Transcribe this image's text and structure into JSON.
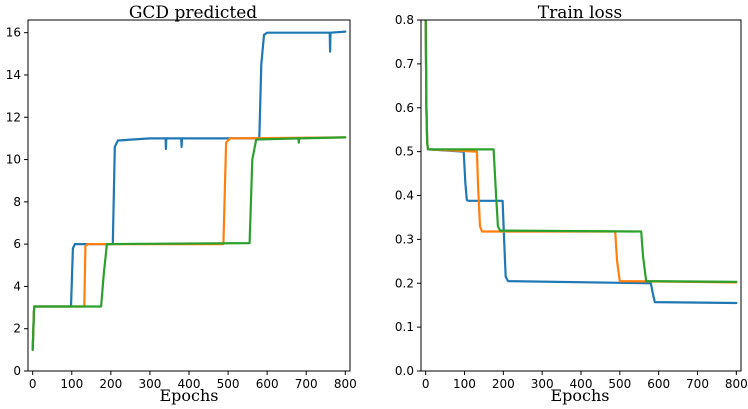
{
  "chart_data": [
    {
      "type": "line",
      "title": "GCD predicted",
      "xlabel": "Epochs",
      "ylabel": "",
      "xlim": [
        -12,
        812
      ],
      "ylim": [
        0,
        16.6
      ],
      "xticks": [
        0,
        100,
        200,
        300,
        400,
        500,
        600,
        700,
        800
      ],
      "yticks": [
        0,
        2,
        4,
        6,
        8,
        10,
        12,
        14,
        16
      ],
      "ytick_labels": [
        "0",
        "2",
        "4",
        "6",
        "8",
        "10",
        "12",
        "14",
        "16"
      ],
      "series": [
        {
          "name": "blue",
          "color": "#1f77b4",
          "x": [
            0,
            3,
            4,
            8,
            98,
            103,
            108,
            205,
            210,
            218,
            300,
            340,
            341,
            342,
            380,
            381,
            382,
            580,
            585,
            592,
            600,
            760,
            761,
            762,
            800
          ],
          "y": [
            1.0,
            2.8,
            3.05,
            3.05,
            3.05,
            5.8,
            6.0,
            6.0,
            10.6,
            10.9,
            11.0,
            11.0,
            10.5,
            11.0,
            11.0,
            10.6,
            11.0,
            11.0,
            14.5,
            15.9,
            16.0,
            16.0,
            15.1,
            16.0,
            16.05
          ]
        },
        {
          "name": "orange",
          "color": "#ff7f0e",
          "x": [
            0,
            3,
            4,
            8,
            132,
            135,
            140,
            488,
            495,
            505,
            800
          ],
          "y": [
            1.0,
            2.8,
            3.05,
            3.05,
            3.05,
            5.9,
            6.0,
            6.0,
            10.8,
            11.0,
            11.05
          ]
        },
        {
          "name": "green",
          "color": "#2ca02c",
          "x": [
            0,
            3,
            4,
            8,
            175,
            182,
            190,
            555,
            562,
            572,
            680,
            681,
            682,
            800
          ],
          "y": [
            1.0,
            2.8,
            3.05,
            3.05,
            3.05,
            4.6,
            6.0,
            6.05,
            10.0,
            10.95,
            11.0,
            10.8,
            11.0,
            11.05
          ]
        }
      ]
    },
    {
      "type": "line",
      "title": "Train loss",
      "xlabel": "Epochs",
      "ylabel": "",
      "xlim": [
        -12,
        812
      ],
      "ylim": [
        0,
        0.8
      ],
      "xticks": [
        0,
        100,
        200,
        300,
        400,
        500,
        600,
        700,
        800
      ],
      "yticks": [
        0,
        0.1,
        0.2,
        0.3,
        0.4,
        0.5,
        0.6,
        0.7,
        0.8
      ],
      "ytick_labels": [
        "0.0",
        "0.1",
        "0.2",
        "0.3",
        "0.4",
        "0.5",
        "0.6",
        "0.7",
        "0.8"
      ],
      "series": [
        {
          "name": "blue",
          "color": "#1f77b4",
          "x": [
            0,
            2,
            4,
            6,
            8,
            98,
            102,
            106,
            110,
            198,
            202,
            206,
            212,
            580,
            584,
            590,
            800
          ],
          "y": [
            0.8,
            0.6,
            0.52,
            0.505,
            0.505,
            0.5,
            0.43,
            0.39,
            0.388,
            0.388,
            0.3,
            0.215,
            0.205,
            0.2,
            0.18,
            0.157,
            0.155
          ]
        },
        {
          "name": "orange",
          "color": "#ff7f0e",
          "x": [
            0,
            2,
            4,
            6,
            8,
            132,
            135,
            140,
            145,
            488,
            493,
            500,
            800
          ],
          "y": [
            0.8,
            0.6,
            0.52,
            0.505,
            0.505,
            0.5,
            0.42,
            0.33,
            0.318,
            0.318,
            0.25,
            0.205,
            0.202
          ]
        },
        {
          "name": "green",
          "color": "#2ca02c",
          "x": [
            0,
            2,
            4,
            6,
            8,
            175,
            180,
            186,
            192,
            555,
            560,
            568,
            800
          ],
          "y": [
            0.8,
            0.6,
            0.52,
            0.505,
            0.505,
            0.505,
            0.42,
            0.33,
            0.32,
            0.318,
            0.26,
            0.205,
            0.203
          ]
        }
      ]
    }
  ]
}
